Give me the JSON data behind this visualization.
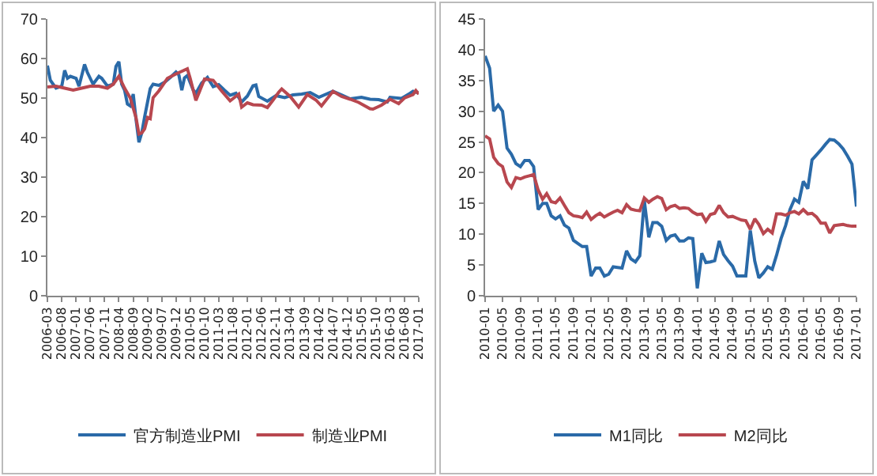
{
  "chart_data": [
    {
      "type": "line",
      "xlim": [
        "2006-03",
        "2017-01"
      ],
      "ylim": [
        0,
        70
      ],
      "yticks": [
        0,
        10,
        20,
        30,
        40,
        50,
        60,
        70
      ],
      "xticks": [
        "2006-03",
        "2006-08",
        "2007-01",
        "2007-06",
        "2007-11",
        "2008-04",
        "2008-09",
        "2009-02",
        "2009-07",
        "2009-12",
        "2010-05",
        "2010-10",
        "2011-03",
        "2011-08",
        "2012-01",
        "2012-06",
        "2012-11",
        "2013-04",
        "2013-09",
        "2014-02",
        "2014-07",
        "2014-12",
        "2015-05",
        "2015-10",
        "2016-03",
        "2016-08",
        "2017-01"
      ],
      "grid": false,
      "legend": "bottom",
      "marker": "none",
      "line_style": "solid",
      "series": [
        {
          "name": "官方制造业PMI",
          "color": "#2a6aa8",
          "x": [
            "2006-03",
            "2006-04",
            "2006-05",
            "2006-06",
            "2006-08",
            "2006-09",
            "2006-10",
            "2006-11",
            "2007-01",
            "2007-02",
            "2007-04",
            "2007-05",
            "2007-07",
            "2007-09",
            "2007-10",
            "2007-12",
            "2008-02",
            "2008-03",
            "2008-04",
            "2008-05",
            "2008-06",
            "2008-07",
            "2008-08",
            "2008-09",
            "2008-10",
            "2008-11",
            "2008-12",
            "2009-01",
            "2009-02",
            "2009-03",
            "2009-04",
            "2009-06",
            "2009-08",
            "2009-10",
            "2009-12",
            "2010-01",
            "2010-02",
            "2010-03",
            "2010-04",
            "2010-06",
            "2010-07",
            "2010-09",
            "2010-11",
            "2011-01",
            "2011-03",
            "2011-05",
            "2011-07",
            "2011-09",
            "2011-11",
            "2012-01",
            "2012-03",
            "2012-04",
            "2012-05",
            "2012-08",
            "2012-11",
            "2013-02",
            "2013-05",
            "2013-08",
            "2013-11",
            "2014-02",
            "2014-07",
            "2014-10",
            "2015-01",
            "2015-05",
            "2015-08",
            "2015-11",
            "2016-02",
            "2016-03",
            "2016-07",
            "2016-10",
            "2016-11",
            "2017-01"
          ],
          "values": [
            58.2,
            54.5,
            53.5,
            52.5,
            53,
            57,
            55,
            55.5,
            55,
            53,
            58.5,
            56.5,
            53.5,
            55.5,
            55,
            53,
            53.5,
            58,
            59.2,
            53.5,
            52,
            48.5,
            48,
            51,
            44.6,
            38.8,
            41.2,
            45.3,
            49,
            52.4,
            53.5,
            53.2,
            54,
            55.2,
            56.6,
            55.8,
            52,
            55.1,
            55.7,
            52.1,
            51.2,
            53.8,
            55.2,
            52.9,
            53.4,
            52,
            50.7,
            51.2,
            49,
            50.5,
            53.1,
            53.3,
            50.4,
            49.2,
            50.6,
            50.1,
            50.8,
            51,
            51.4,
            50.2,
            51.7,
            50.8,
            49.8,
            50.2,
            49.7,
            49.6,
            49,
            50.2,
            49.9,
            51.2,
            51.7,
            51.3
          ]
        },
        {
          "name": "制造业PMI",
          "color": "#b8474f",
          "x": [
            "2006-03",
            "2006-06",
            "2006-09",
            "2006-12",
            "2007-03",
            "2007-06",
            "2007-09",
            "2007-12",
            "2008-02",
            "2008-04",
            "2008-06",
            "2008-08",
            "2008-10",
            "2008-11",
            "2008-12",
            "2009-01",
            "2009-02",
            "2009-03",
            "2009-04",
            "2009-06",
            "2009-09",
            "2009-12",
            "2010-04",
            "2010-05",
            "2010-07",
            "2010-10",
            "2011-01",
            "2011-04",
            "2011-07",
            "2011-10",
            "2011-11",
            "2012-01",
            "2012-03",
            "2012-06",
            "2012-08",
            "2012-10",
            "2012-12",
            "2013-01",
            "2013-04",
            "2013-07",
            "2013-10",
            "2014-01",
            "2014-03",
            "2014-07",
            "2014-10",
            "2015-01",
            "2015-04",
            "2015-08",
            "2015-09",
            "2015-12",
            "2016-03",
            "2016-06",
            "2016-08",
            "2016-11",
            "2016-12",
            "2017-01"
          ],
          "values": [
            52.8,
            53,
            52.5,
            52,
            52.5,
            53,
            53,
            52.5,
            53.5,
            55.5,
            52.5,
            50,
            45,
            40.9,
            41.2,
            42.2,
            45.1,
            44.8,
            50.1,
            51.8,
            55,
            56.1,
            57.4,
            55,
            49.4,
            54.8,
            54.5,
            51.8,
            49.3,
            51,
            47.7,
            48.8,
            48.3,
            48.2,
            47.6,
            49.5,
            51.5,
            52.3,
            50.4,
            47.7,
            50.9,
            49.5,
            48,
            51.7,
            50.4,
            49.7,
            48.9,
            47.3,
            47.2,
            48.2,
            49.7,
            48.6,
            50,
            50.9,
            51.9,
            51
          ]
        }
      ]
    },
    {
      "type": "line",
      "xlim": [
        "2010-01",
        "2017-01"
      ],
      "ylim": [
        0,
        45
      ],
      "yticks": [
        0,
        5,
        10,
        15,
        20,
        25,
        30,
        35,
        40,
        45
      ],
      "xticks": [
        "2010-01",
        "2010-05",
        "2010-09",
        "2011-01",
        "2011-05",
        "2011-09",
        "2012-01",
        "2012-05",
        "2012-09",
        "2013-01",
        "2013-05",
        "2013-09",
        "2014-01",
        "2014-05",
        "2014-09",
        "2015-01",
        "2015-05",
        "2015-09",
        "2016-01",
        "2016-05",
        "2016-09",
        "2017-01"
      ],
      "grid": false,
      "legend": "bottom",
      "marker": "none",
      "line_style": "solid",
      "x": [
        "2010-01",
        "2010-02",
        "2010-03",
        "2010-04",
        "2010-05",
        "2010-06",
        "2010-07",
        "2010-08",
        "2010-09",
        "2010-10",
        "2010-11",
        "2010-12",
        "2011-01",
        "2011-02",
        "2011-03",
        "2011-04",
        "2011-05",
        "2011-06",
        "2011-07",
        "2011-08",
        "2011-09",
        "2011-10",
        "2011-11",
        "2011-12",
        "2012-01",
        "2012-02",
        "2012-03",
        "2012-04",
        "2012-05",
        "2012-06",
        "2012-07",
        "2012-08",
        "2012-09",
        "2012-10",
        "2012-11",
        "2012-12",
        "2013-01",
        "2013-02",
        "2013-03",
        "2013-04",
        "2013-05",
        "2013-06",
        "2013-07",
        "2013-08",
        "2013-09",
        "2013-10",
        "2013-11",
        "2013-12",
        "2014-01",
        "2014-02",
        "2014-03",
        "2014-04",
        "2014-05",
        "2014-06",
        "2014-07",
        "2014-08",
        "2014-09",
        "2014-10",
        "2014-11",
        "2014-12",
        "2015-01",
        "2015-02",
        "2015-03",
        "2015-04",
        "2015-05",
        "2015-06",
        "2015-07",
        "2015-08",
        "2015-09",
        "2015-10",
        "2015-11",
        "2015-12",
        "2016-01",
        "2016-02",
        "2016-03",
        "2016-04",
        "2016-05",
        "2016-06",
        "2016-07",
        "2016-08",
        "2016-09",
        "2016-10",
        "2016-11",
        "2016-12",
        "2017-01"
      ],
      "series": [
        {
          "name": "M1同比",
          "color": "#2a6aa8",
          "values": [
            39,
            37,
            30,
            31,
            30,
            24,
            23,
            21.5,
            21,
            22,
            22,
            21,
            14,
            15,
            15,
            13,
            12.5,
            13,
            11.5,
            11,
            9,
            8.5,
            8,
            8,
            3.2,
            4.5,
            4.5,
            3.2,
            3.5,
            4.7,
            4.6,
            4.5,
            7.3,
            6,
            5.5,
            6.5,
            15.5,
            9.5,
            11.9,
            11.9,
            11.3,
            9,
            9.7,
            9.9,
            8.9,
            8.9,
            9.4,
            9.3,
            1.2,
            6.9,
            5.4,
            5.5,
            5.7,
            8.9,
            6.7,
            5.7,
            4.8,
            3.2,
            3.2,
            3.2,
            10.6,
            5.6,
            2.9,
            3.7,
            4.7,
            4.3,
            6.6,
            9.3,
            11.4,
            14,
            15.7,
            15.2,
            18.6,
            17.4,
            22.1,
            22.9,
            23.7,
            24.6,
            25.4,
            25.3,
            24.7,
            23.9,
            22.7,
            21.4,
            14.5
          ]
        },
        {
          "name": "M2同比",
          "color": "#b8474f",
          "values": [
            26,
            25.5,
            22.5,
            21.5,
            21,
            18.5,
            17.6,
            19.2,
            19,
            19.3,
            19.5,
            19.7,
            17.2,
            15.7,
            16.6,
            15.3,
            15.1,
            15.9,
            14.7,
            13.5,
            13,
            12.9,
            12.7,
            13.6,
            12.4,
            13,
            13.4,
            12.8,
            13.2,
            13.6,
            13.9,
            13.5,
            14.8,
            14.1,
            13.9,
            13.8,
            15.9,
            15.2,
            15.7,
            16.1,
            15.8,
            14,
            14.5,
            14.7,
            14.2,
            14.3,
            14.2,
            13.6,
            13.2,
            13.3,
            12.1,
            13.2,
            13.4,
            14.7,
            13.5,
            12.8,
            12.9,
            12.6,
            12.3,
            12.2,
            10.8,
            12.5,
            11.6,
            10.1,
            10.8,
            10.2,
            13.3,
            13.3,
            13.1,
            13.5,
            13.7,
            13.3,
            14,
            13.3,
            13.4,
            12.8,
            11.8,
            11.8,
            10.2,
            11.4,
            11.5,
            11.6,
            11.4,
            11.3,
            11.3
          ]
        }
      ]
    }
  ]
}
